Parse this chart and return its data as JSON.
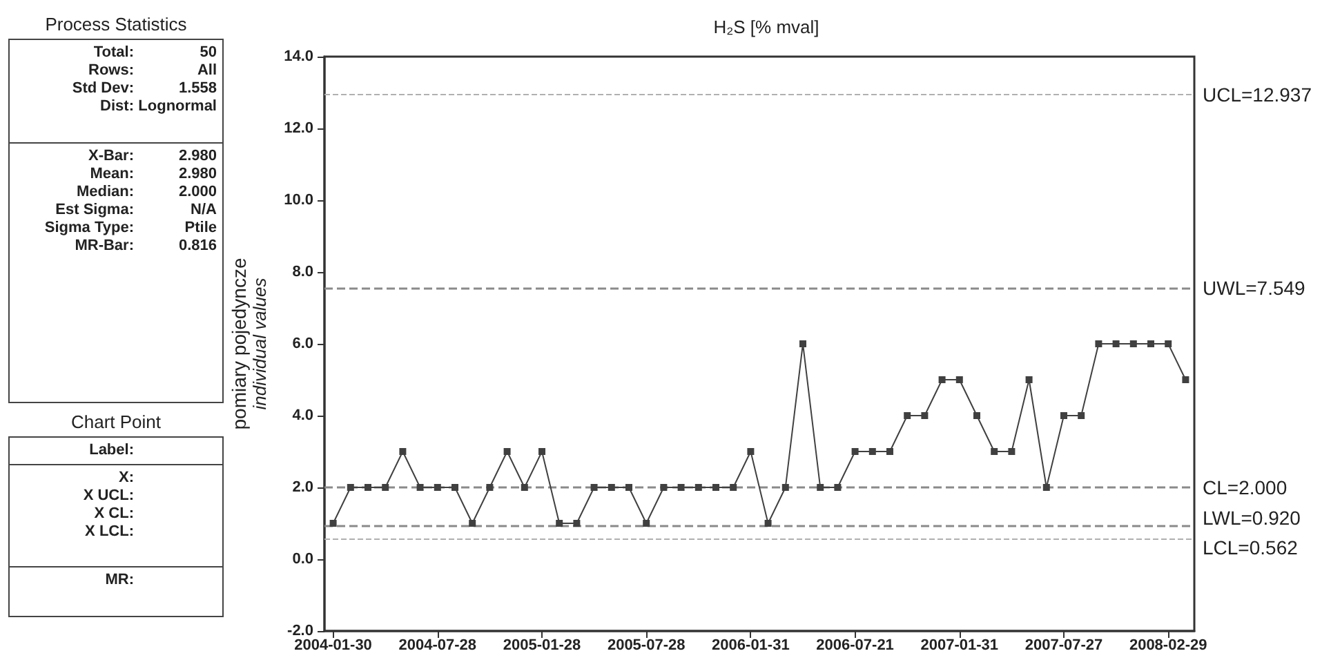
{
  "chart_data": [
    {
      "type": "other",
      "title": "Process Statistics",
      "annotations": [
        "Total: 50",
        "Rows: All",
        "Std Dev: 1.558",
        "Dist: Lognormal"
      ]
    },
    {
      "type": "other",
      "annotations": [
        "X-Bar: 2.980",
        "Mean: 2.980",
        "Median: 2.000",
        "Est Sigma: N/A",
        "Sigma Type: Ptile",
        "MR-Bar: 0.816"
      ]
    },
    {
      "type": "other",
      "title": "Chart Point",
      "annotations": [
        "Label:"
      ]
    },
    {
      "type": "other",
      "annotations": [
        "X:",
        "X UCL:",
        "X CL:",
        "X LCL:"
      ]
    },
    {
      "type": "other",
      "annotations": [
        "MR:"
      ]
    },
    {
      "type": "line",
      "title": "H₂S [% mval]",
      "ylabel": "pomiary pojedyncze\nindividual values",
      "categories": [
        "2004-01-30",
        null,
        null,
        null,
        null,
        null,
        "2004-07-28",
        null,
        null,
        null,
        null,
        null,
        "2005-01-28",
        null,
        null,
        null,
        null,
        null,
        "2005-07-28",
        null,
        null,
        null,
        null,
        null,
        "2006-01-31",
        null,
        null,
        null,
        null,
        null,
        "2006-07-21",
        null,
        null,
        null,
        null,
        null,
        "2007-01-31",
        null,
        null,
        null,
        null,
        null,
        "2007-07-27",
        null,
        null,
        null,
        null,
        null,
        "2008-02-29",
        null
      ],
      "series": [
        {
          "color": "#404040",
          "values": [
            1,
            2,
            2,
            2,
            3,
            2,
            2,
            2,
            1,
            2,
            3,
            2,
            3,
            1,
            1,
            2,
            2,
            2,
            1,
            2,
            2,
            2,
            2,
            2,
            3,
            1,
            2,
            6,
            2,
            2,
            3,
            3,
            3,
            4,
            4,
            5,
            5,
            4,
            3,
            3,
            5,
            2,
            4,
            4,
            6,
            6,
            6,
            6,
            6,
            5
          ]
        }
      ],
      "ylim": [
        -2,
        14
      ],
      "yticks": [
        {
          "value": -2,
          "label": "-2.0"
        },
        {
          "value": 0,
          "label": "0.0"
        },
        {
          "value": 2,
          "label": "2.0"
        },
        {
          "value": 4,
          "label": "4.0"
        },
        {
          "value": 6,
          "label": "6.0"
        },
        {
          "value": 8,
          "label": "8.0"
        },
        {
          "value": 10,
          "label": "10.0"
        },
        {
          "value": 12,
          "label": "12.0"
        },
        {
          "value": 14,
          "label": "14.0"
        }
      ],
      "ref_lines": [
        {
          "axis": "y",
          "value": 12.937,
          "label": "UCL=12.937",
          "color": "#b0b0b0",
          "line_style": "dashed"
        },
        {
          "axis": "y",
          "value": 7.549,
          "label": "UWL=7.549",
          "color": "#8a8a8a",
          "line_style": "dashed"
        },
        {
          "axis": "y",
          "value": 2.0,
          "label": "CL=2.000",
          "color": "#8a8a8a",
          "line_style": "dashed"
        },
        {
          "axis": "y",
          "value": 0.92,
          "label": "LWL=0.920",
          "color": "#8a8a8a",
          "line_style": "dashed"
        },
        {
          "axis": "y",
          "value": 0.562,
          "label": "LCL=0.562",
          "color": "#b0b0b0",
          "line_style": "dashed"
        }
      ],
      "marker": "square",
      "line_style": "solid",
      "grid": false
    }
  ]
}
